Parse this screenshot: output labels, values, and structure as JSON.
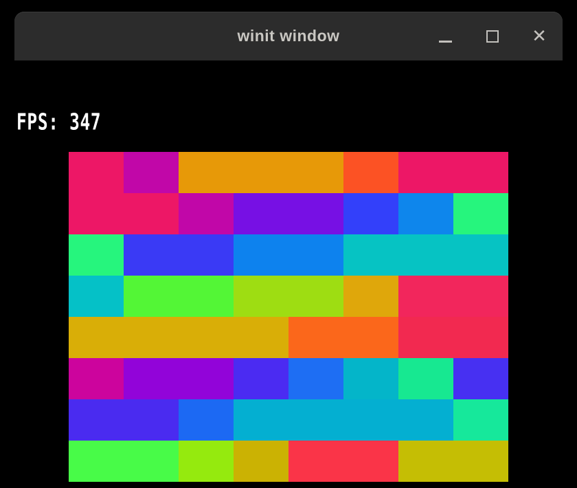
{
  "window": {
    "title": "winit window",
    "titlebar_color": "#2c2c2c",
    "title_color": "#c9c7c2",
    "controls": {
      "minimize_icon": "minimize-icon",
      "maximize_icon": "maximize-icon",
      "close_icon": "close-icon",
      "close_glyph": "✕",
      "glyph_color": "#c3c1bd"
    }
  },
  "fps": {
    "label": "FPS: 347",
    "value": 347,
    "color": "#ffffff"
  },
  "background_color": "#000000",
  "grid": {
    "columns": 8,
    "rows_count": 8,
    "rows": [
      [
        {
          "span": 1,
          "color": "#ed1766"
        },
        {
          "span": 1,
          "color": "#c107a8"
        },
        {
          "span": 3,
          "color": "#e79908"
        },
        {
          "span": 1,
          "color": "#fc5224"
        },
        {
          "span": 2,
          "color": "#ed1766"
        }
      ],
      [
        {
          "span": 2,
          "color": "#ed1766"
        },
        {
          "span": 1,
          "color": "#c107a8"
        },
        {
          "span": 2,
          "color": "#7710e4"
        },
        {
          "span": 1,
          "color": "#3340fa"
        },
        {
          "span": 1,
          "color": "#0e86ec"
        },
        {
          "span": 1,
          "color": "#26f57d"
        }
      ],
      [
        {
          "span": 1,
          "color": "#26f57d"
        },
        {
          "span": 2,
          "color": "#3a3af5"
        },
        {
          "span": 2,
          "color": "#0d82ee"
        },
        {
          "span": 3,
          "color": "#06c3c3"
        }
      ],
      [
        {
          "span": 1,
          "color": "#05c1c7"
        },
        {
          "span": 2,
          "color": "#53f636"
        },
        {
          "span": 2,
          "color": "#9edd12"
        },
        {
          "span": 1,
          "color": "#dfa70b"
        },
        {
          "span": 2,
          "color": "#f2265c"
        }
      ],
      [
        {
          "span": 4,
          "color": "#d9ae07"
        },
        {
          "span": 2,
          "color": "#fb671b"
        },
        {
          "span": 2,
          "color": "#f22950"
        }
      ],
      [
        {
          "span": 1,
          "color": "#cc049d"
        },
        {
          "span": 2,
          "color": "#9204d9"
        },
        {
          "span": 1,
          "color": "#4b2bf2"
        },
        {
          "span": 1,
          "color": "#1e6ef3"
        },
        {
          "span": 1,
          "color": "#04b5c9"
        },
        {
          "span": 1,
          "color": "#17e891"
        },
        {
          "span": 1,
          "color": "#4730f2"
        }
      ],
      [
        {
          "span": 2,
          "color": "#4a2bf0"
        },
        {
          "span": 1,
          "color": "#1c69f3"
        },
        {
          "span": 4,
          "color": "#04afd1"
        },
        {
          "span": 1,
          "color": "#16e89b"
        }
      ],
      [
        {
          "span": 2,
          "color": "#48fb48"
        },
        {
          "span": 1,
          "color": "#95ea0e"
        },
        {
          "span": 1,
          "color": "#cbb203"
        },
        {
          "span": 2,
          "color": "#fa3448"
        },
        {
          "span": 2,
          "color": "#c5be04"
        }
      ]
    ]
  }
}
